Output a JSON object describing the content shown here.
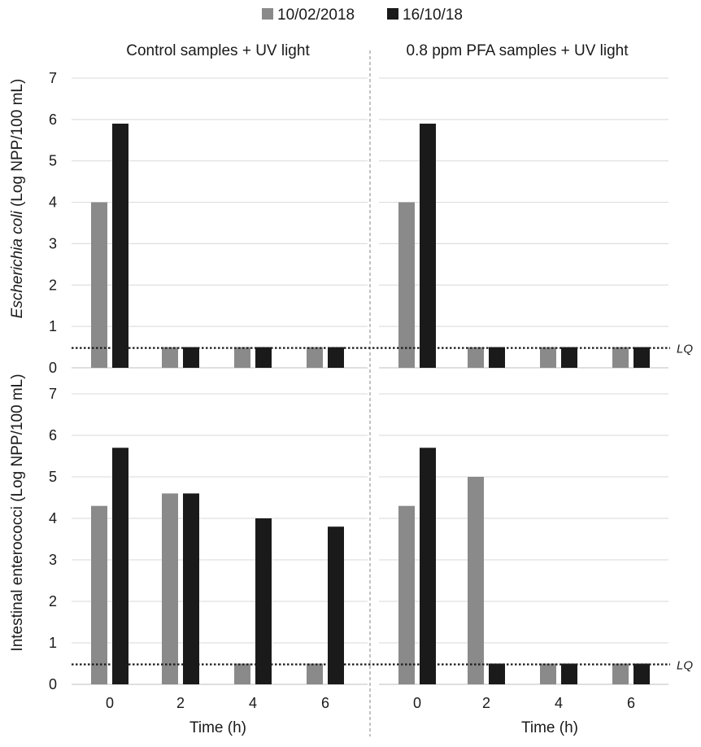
{
  "chart_data": {
    "type": "bar",
    "legend": {
      "placement": "top-center",
      "entries": [
        {
          "label": "10/02/2018",
          "color": "#8a8a8a"
        },
        {
          "label": "16/10/18",
          "color": "#1a1a1a"
        }
      ]
    },
    "categories": [
      "0",
      "2",
      "4",
      "6"
    ],
    "xlabel": "Time (h)",
    "ylim": [
      0,
      7
    ],
    "yticks": [
      "0",
      "1",
      "2",
      "3",
      "4",
      "5",
      "6",
      "7"
    ],
    "grid": true,
    "lq": {
      "value": 0.48,
      "label": "LQ"
    },
    "columns": [
      {
        "title": "Control samples + UV light"
      },
      {
        "title": "0.8 ppm PFA samples + UV light"
      }
    ],
    "rows": [
      {
        "ylabel_italic": "Escherichia coli",
        "ylabel_rest": " (Log NPP/100 mL)"
      },
      {
        "ylabel_italic": "",
        "ylabel_rest": "Intestinal enterococci (Log NPP/100 mL)"
      }
    ],
    "panels": [
      {
        "row": 0,
        "col": 0,
        "series": [
          {
            "name": "10/02/2018",
            "values": [
              4.0,
              0.5,
              0.5,
              0.5
            ]
          },
          {
            "name": "16/10/18",
            "values": [
              5.9,
              0.5,
              0.5,
              0.5
            ]
          }
        ]
      },
      {
        "row": 0,
        "col": 1,
        "series": [
          {
            "name": "10/02/2018",
            "values": [
              4.0,
              0.5,
              0.5,
              0.5
            ]
          },
          {
            "name": "16/10/18",
            "values": [
              5.9,
              0.5,
              0.5,
              0.5
            ]
          }
        ]
      },
      {
        "row": 1,
        "col": 0,
        "series": [
          {
            "name": "10/02/2018",
            "values": [
              4.3,
              4.6,
              0.5,
              0.5
            ]
          },
          {
            "name": "16/10/18",
            "values": [
              5.7,
              4.6,
              4.0,
              3.8
            ]
          }
        ]
      },
      {
        "row": 1,
        "col": 1,
        "series": [
          {
            "name": "10/02/2018",
            "values": [
              4.3,
              5.0,
              0.5,
              0.5
            ]
          },
          {
            "name": "16/10/18",
            "values": [
              5.7,
              0.5,
              0.5,
              0.5
            ]
          }
        ]
      }
    ]
  }
}
